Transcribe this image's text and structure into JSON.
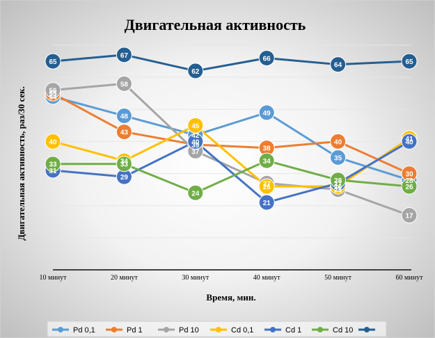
{
  "chart_data": {
    "type": "line",
    "title": "Двигательная активность",
    "xlabel": "Время, мин.",
    "ylabel": "Двигательная активность, раз/30 сек.",
    "categories": [
      "10 минут",
      "20 минут",
      "30 минут",
      "40 минут",
      "50 минут",
      "60 минут"
    ],
    "ylim": [
      0,
      70
    ],
    "grid": true,
    "legend": "bottom",
    "series": [
      {
        "name": "Pd 0,1",
        "color": "#5b9bd5",
        "values": [
          54,
          48,
          42,
          49,
          35,
          28
        ]
      },
      {
        "name": "Pd 1",
        "color": "#ed7d31",
        "values": [
          55,
          43,
          39,
          38,
          40,
          30
        ]
      },
      {
        "name": "Pd 10",
        "color": "#a5a5a5",
        "values": [
          56,
          58,
          37,
          27,
          25,
          17
        ]
      },
      {
        "name": "Cd 0,1",
        "color": "#ffc000",
        "values": [
          40,
          34,
          45,
          26,
          26,
          41
        ]
      },
      {
        "name": "Cd 1",
        "color": "#4472c4",
        "values": [
          31,
          29,
          40,
          21,
          27,
          40
        ]
      },
      {
        "name": "Cd 10",
        "color": "#70ad47",
        "values": [
          33,
          33,
          24,
          34,
          28,
          26
        ]
      },
      {
        "name": "",
        "color": "#255e91",
        "values": [
          65,
          67,
          62,
          66,
          64,
          65
        ]
      }
    ]
  }
}
